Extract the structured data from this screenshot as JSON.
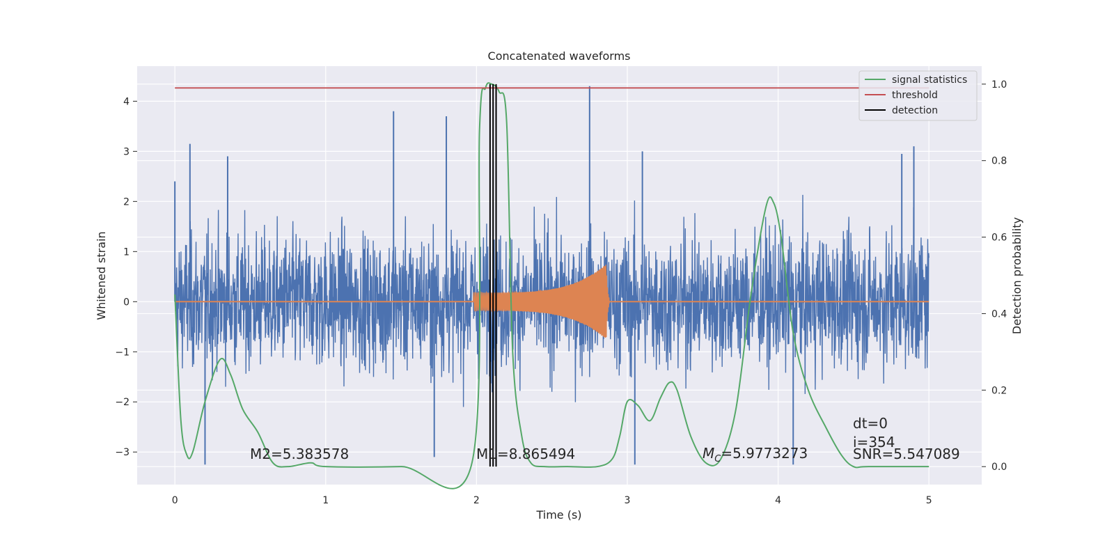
{
  "chart_data": {
    "type": "line",
    "title": "Concatenated waveforms",
    "xlabel": "Time (s)",
    "ylabel": "Whitened strain",
    "y2label": "Detection probability",
    "xlim": [
      -0.25,
      5.35
    ],
    "ylim": [
      -3.65,
      4.7
    ],
    "y2lim": [
      -0.047,
      1.047
    ],
    "xticks": [
      0,
      1,
      2,
      3,
      4,
      5
    ],
    "yticks": [
      -3,
      -2,
      -1,
      0,
      1,
      2,
      3,
      4
    ],
    "y2ticks": [
      0.0,
      0.2,
      0.4,
      0.6,
      0.8,
      1.0
    ],
    "xtick_labels": [
      "0",
      "1",
      "2",
      "3",
      "4",
      "5"
    ],
    "ytick_labels": [
      "−3",
      "−2",
      "−1",
      "0",
      "1",
      "2",
      "3",
      "4"
    ],
    "y2tick_labels": [
      "0.0",
      "0.2",
      "0.4",
      "0.6",
      "0.8",
      "1.0"
    ],
    "grid": true,
    "legend_position": "top-right",
    "colors": {
      "strain": "#4c72b0",
      "template": "#dd8452",
      "signal_statistics": "#55a868",
      "threshold": "#c44e52",
      "detection": "#000000",
      "background": "#eaeaf2",
      "grid": "#ffffff"
    },
    "strain": {
      "x_range": [
        0,
        5
      ],
      "typical_amplitude": 1.25,
      "spikes": [
        {
          "x": 0.0,
          "y": 2.4
        },
        {
          "x": 0.1,
          "y": 3.15
        },
        {
          "x": 0.35,
          "y": 2.9
        },
        {
          "x": 0.2,
          "y": -3.25
        },
        {
          "x": 1.45,
          "y": 3.8
        },
        {
          "x": 1.8,
          "y": 3.7
        },
        {
          "x": 1.72,
          "y": -3.1
        },
        {
          "x": 2.13,
          "y": 2.6
        },
        {
          "x": 2.75,
          "y": 4.3
        },
        {
          "x": 3.1,
          "y": 3.0
        },
        {
          "x": 3.05,
          "y": -3.25
        },
        {
          "x": 4.1,
          "y": -3.25
        },
        {
          "x": 4.82,
          "y": 2.95
        },
        {
          "x": 4.9,
          "y": 3.1
        }
      ]
    },
    "template": {
      "x_start": 1.98,
      "x_end": 2.88,
      "start_amplitude": 0.18,
      "peak_amplitude": 0.75,
      "peak_x": 2.86
    },
    "signal_statistics": {
      "name": "signal statistics",
      "axis": "right",
      "x": [
        0.0,
        0.04,
        0.08,
        0.12,
        0.2,
        0.3,
        0.37,
        0.45,
        0.55,
        0.65,
        0.75,
        0.9,
        1.0,
        1.5,
        1.97,
        2.02,
        2.06,
        2.1,
        2.15,
        2.2,
        2.24,
        2.3,
        2.36,
        2.45,
        2.6,
        2.8,
        2.9,
        2.95,
        3.0,
        3.07,
        3.15,
        3.22,
        3.28,
        3.33,
        3.42,
        3.52,
        3.62,
        3.72,
        3.82,
        3.92,
        3.97,
        4.02,
        4.1,
        4.2,
        4.32,
        4.42,
        4.5,
        4.6,
        5.0
      ],
      "y": [
        0.45,
        0.12,
        0.03,
        0.04,
        0.17,
        0.28,
        0.24,
        0.15,
        0.09,
        0.01,
        0.0,
        0.01,
        0.0,
        0.0,
        0.01,
        0.88,
        0.99,
        1.0,
        0.98,
        0.9,
        0.3,
        0.08,
        0.01,
        0.0,
        0.0,
        0.0,
        0.02,
        0.08,
        0.17,
        0.16,
        0.12,
        0.18,
        0.22,
        0.2,
        0.08,
        0.01,
        0.02,
        0.15,
        0.45,
        0.68,
        0.69,
        0.6,
        0.35,
        0.2,
        0.1,
        0.03,
        0.0,
        0.0,
        0.0
      ]
    },
    "threshold": {
      "name": "threshold",
      "axis": "right",
      "value": 0.99,
      "x_range": [
        0,
        5
      ]
    },
    "detection": {
      "name": "detection",
      "x": [
        2.09,
        2.11,
        2.13
      ]
    },
    "legend": [
      "signal statistics",
      "threshold",
      "detection"
    ],
    "annotations": {
      "m2": "M2=5.383578",
      "m1": "M1=8.865494",
      "mc_symbol": "M",
      "mc_sub": "C",
      "mc_value": "=5.9773273",
      "dt": "dt=0",
      "i": "i=354",
      "snr": "SNR=5.547089"
    }
  }
}
